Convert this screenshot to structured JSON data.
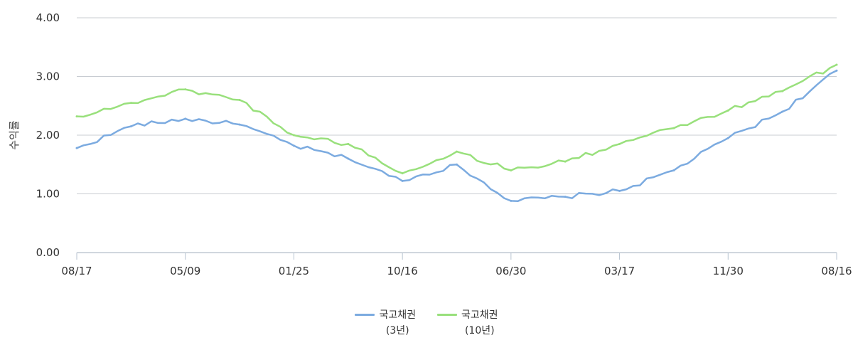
{
  "chart_data": {
    "type": "line",
    "ylabel": "수익률",
    "ylim": [
      0,
      4
    ],
    "yticks": [
      "0.00",
      "1.00",
      "2.00",
      "3.00",
      "4.00"
    ],
    "xticks": [
      "08/17",
      "05/09",
      "01/25",
      "10/16",
      "06/30",
      "03/17",
      "11/30",
      "08/16"
    ],
    "grid": true,
    "legend_position": "bottom-center",
    "x": [
      "08/17",
      "12/28",
      "05/09",
      "09/19",
      "01/25",
      "06/06",
      "10/16",
      "02/26",
      "06/30",
      "11/10",
      "03/17",
      "07/28",
      "11/30",
      "04/12",
      "08/16"
    ],
    "series": [
      {
        "name": "국고채권",
        "name_line2": "(3년)",
        "color": "#7cabe0",
        "values": [
          1.78,
          2.15,
          2.28,
          2.18,
          1.82,
          1.6,
          1.22,
          1.5,
          0.88,
          0.95,
          1.05,
          1.4,
          1.95,
          2.4,
          3.1
        ]
      },
      {
        "name": "국고채권",
        "name_line2": "(10년)",
        "color": "#99e07c",
        "values": [
          2.32,
          2.55,
          2.78,
          2.6,
          2.0,
          1.85,
          1.35,
          1.72,
          1.4,
          1.55,
          1.85,
          2.12,
          2.42,
          2.75,
          3.2
        ]
      }
    ]
  }
}
